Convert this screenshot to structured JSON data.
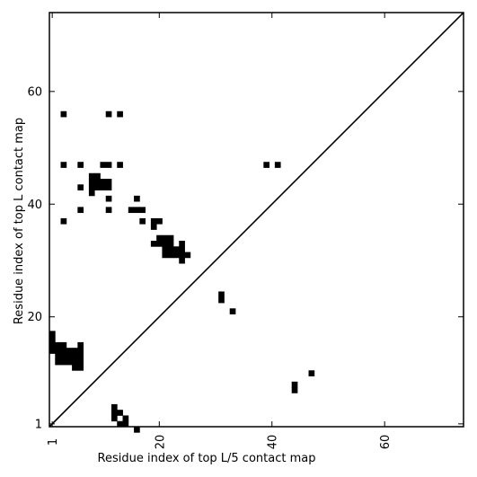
{
  "chart_data": {
    "type": "heatmap",
    "title": "",
    "xlabel": "Residue index of top L/5 contact map",
    "ylabel": "Residue index of top L contact map",
    "xlim": [
      0.5,
      74
    ],
    "ylim": [
      0.5,
      74
    ],
    "x_ticks": [
      1,
      20,
      40,
      60
    ],
    "y_ticks": [
      1,
      20,
      40,
      60
    ],
    "diagonal": true,
    "cell_color": "#000000",
    "cells": [
      [
        1,
        14
      ],
      [
        1,
        15
      ],
      [
        1,
        16
      ],
      [
        1,
        17
      ],
      [
        2,
        12
      ],
      [
        2,
        13
      ],
      [
        2,
        14
      ],
      [
        2,
        15
      ],
      [
        3,
        12
      ],
      [
        3,
        13
      ],
      [
        3,
        14
      ],
      [
        3,
        15
      ],
      [
        3,
        37
      ],
      [
        3,
        47
      ],
      [
        3,
        56
      ],
      [
        4,
        12
      ],
      [
        4,
        13
      ],
      [
        4,
        14
      ],
      [
        5,
        11
      ],
      [
        5,
        12
      ],
      [
        5,
        13
      ],
      [
        5,
        14
      ],
      [
        6,
        11
      ],
      [
        6,
        12
      ],
      [
        6,
        13
      ],
      [
        6,
        14
      ],
      [
        6,
        15
      ],
      [
        6,
        39
      ],
      [
        6,
        43
      ],
      [
        6,
        47
      ],
      [
        8,
        42
      ],
      [
        8,
        43
      ],
      [
        8,
        44
      ],
      [
        8,
        45
      ],
      [
        9,
        43
      ],
      [
        9,
        44
      ],
      [
        9,
        45
      ],
      [
        10,
        43
      ],
      [
        10,
        44
      ],
      [
        10,
        47
      ],
      [
        11,
        39
      ],
      [
        11,
        41
      ],
      [
        11,
        43
      ],
      [
        11,
        44
      ],
      [
        11,
        47
      ],
      [
        11,
        56
      ],
      [
        12,
        2
      ],
      [
        12,
        3
      ],
      [
        12,
        4
      ],
      [
        13,
        1
      ],
      [
        13,
        3
      ],
      [
        13,
        47
      ],
      [
        13,
        56
      ],
      [
        14,
        1
      ],
      [
        14,
        2
      ],
      [
        15,
        39
      ],
      [
        16,
        0
      ],
      [
        16,
        39
      ],
      [
        16,
        41
      ],
      [
        17,
        37
      ],
      [
        17,
        39
      ],
      [
        19,
        33
      ],
      [
        19,
        36
      ],
      [
        19,
        37
      ],
      [
        20,
        33
      ],
      [
        20,
        34
      ],
      [
        20,
        37
      ],
      [
        21,
        31
      ],
      [
        21,
        32
      ],
      [
        21,
        33
      ],
      [
        21,
        34
      ],
      [
        22,
        31
      ],
      [
        22,
        32
      ],
      [
        22,
        33
      ],
      [
        22,
        34
      ],
      [
        23,
        31
      ],
      [
        23,
        32
      ],
      [
        24,
        30
      ],
      [
        24,
        31
      ],
      [
        24,
        32
      ],
      [
        24,
        33
      ],
      [
        25,
        31
      ],
      [
        31,
        23
      ],
      [
        31,
        24
      ],
      [
        33,
        21
      ],
      [
        39,
        47
      ],
      [
        41,
        47
      ],
      [
        44,
        7
      ],
      [
        44,
        8
      ],
      [
        47,
        10
      ]
    ]
  }
}
